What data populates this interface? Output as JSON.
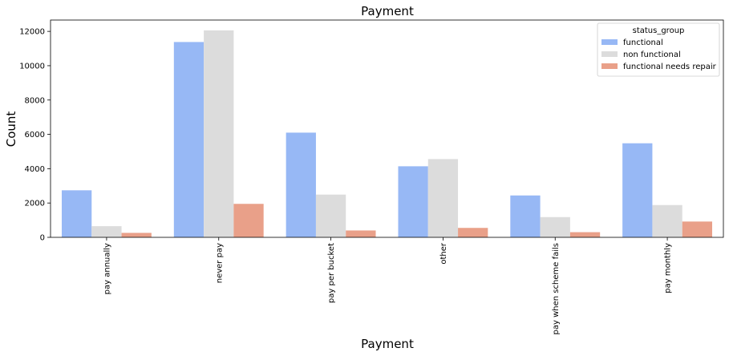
{
  "chart_data": {
    "type": "bar",
    "title": "Payment",
    "xlabel": "Payment",
    "ylabel": "Count",
    "categories": [
      "pay annually",
      "never pay",
      "pay per bucket",
      "other",
      "pay when scheme fails",
      "pay monthly"
    ],
    "series": [
      {
        "name": "functional",
        "color": "#97b8f5",
        "values": [
          2740,
          11380,
          6100,
          4140,
          2440,
          5480
        ]
      },
      {
        "name": "non functional",
        "color": "#dcdcdc",
        "values": [
          650,
          12060,
          2490,
          4560,
          1180,
          1880
        ]
      },
      {
        "name": "functional needs repair",
        "color": "#e9a089",
        "values": [
          260,
          1950,
          400,
          550,
          300,
          920
        ]
      }
    ],
    "ylim": [
      0,
      12660
    ],
    "yticks": [
      0,
      2000,
      4000,
      6000,
      8000,
      10000,
      12000
    ],
    "grid": false,
    "legend": {
      "title": "status_group",
      "position": "top-right"
    }
  }
}
